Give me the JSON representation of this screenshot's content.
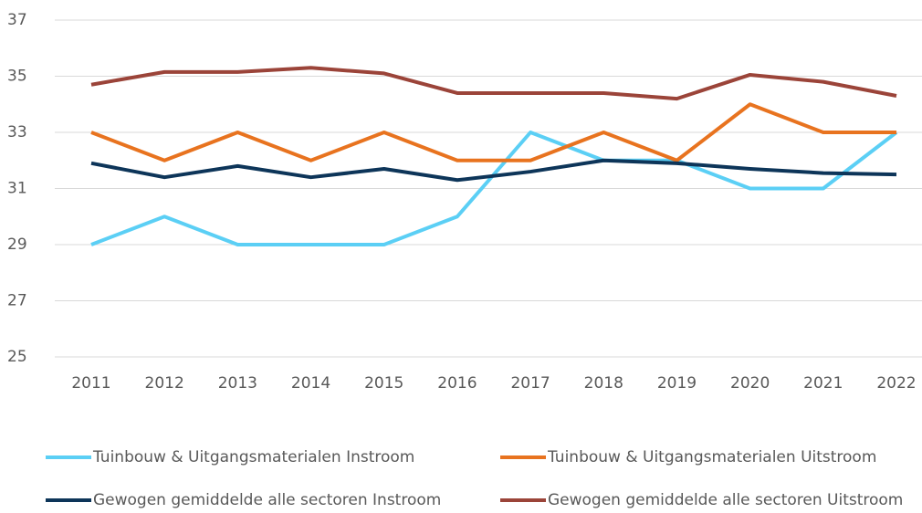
{
  "chart_data": {
    "type": "line",
    "categories": [
      "2011",
      "2012",
      "2013",
      "2014",
      "2015",
      "2016",
      "2017",
      "2018",
      "2019",
      "2020",
      "2021",
      "2022"
    ],
    "series": [
      {
        "name": "Tuinbouw & Uitgangsmaterialen Instroom",
        "color": "#5bcff5",
        "values": [
          29,
          30,
          29,
          29,
          29,
          30,
          33,
          32,
          32,
          31,
          31,
          33
        ]
      },
      {
        "name": "Tuinbouw & Uitgangsmaterialen Uitstroom",
        "color": "#e8731f",
        "values": [
          33,
          32,
          33,
          32,
          33,
          32,
          32,
          33,
          32,
          34,
          33,
          33
        ]
      },
      {
        "name": "Gewogen gemiddelde alle sectoren Instroom",
        "color": "#0d3559",
        "values": [
          31.9,
          31.4,
          31.8,
          31.4,
          31.7,
          31.3,
          31.6,
          32.0,
          31.9,
          31.7,
          31.55,
          31.5
        ]
      },
      {
        "name": "Gewogen gemiddelde alle sectoren Uitstroom",
        "color": "#9b4439",
        "values": [
          34.7,
          35.15,
          35.15,
          35.3,
          35.1,
          34.4,
          34.4,
          34.4,
          34.2,
          35.05,
          34.8,
          34.3
        ]
      }
    ],
    "ylim": [
      25,
      37
    ],
    "yticks": [
      25,
      27,
      29,
      31,
      33,
      35,
      37
    ],
    "grid": true
  }
}
